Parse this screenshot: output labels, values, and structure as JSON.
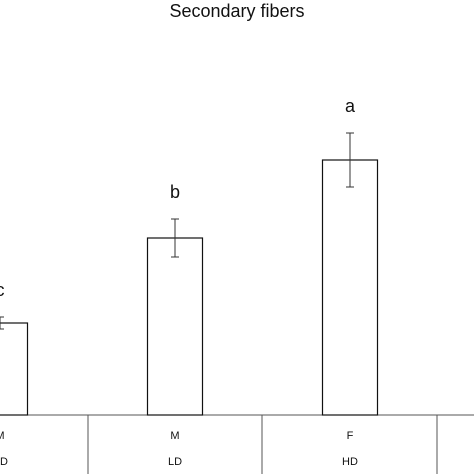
{
  "chart_data": {
    "type": "bar",
    "title": "Secondary fibers",
    "categories": [
      "M",
      "M",
      "F"
    ],
    "groups": [
      "HD",
      "LD",
      "HD"
    ],
    "values": [
      92,
      177,
      255
    ],
    "errors": [
      6,
      19,
      27
    ],
    "letters": [
      "c",
      "b",
      "a"
    ],
    "color": "#ffffff",
    "ylim": [
      0,
      300
    ]
  }
}
